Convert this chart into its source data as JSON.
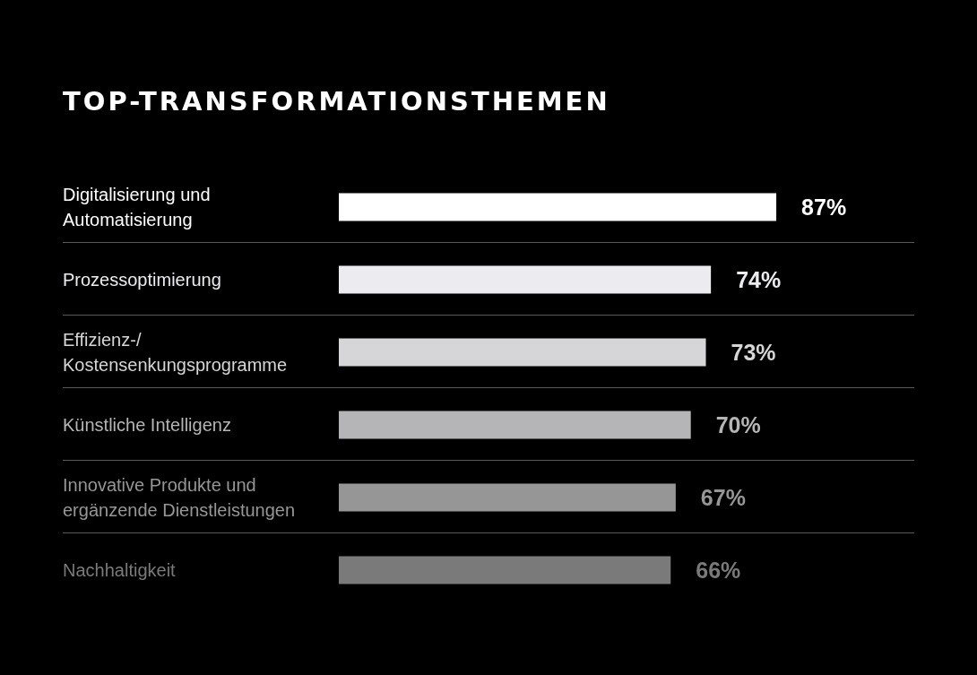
{
  "chart_data": {
    "type": "bar",
    "orientation": "horizontal",
    "title": "TOP-TRANSFORMATIONSTHEMEN",
    "categories": [
      "Digitalisierung und Automatisierung",
      "Prozessoptimierung",
      "Effizienz-/ Kostensenkungsprogramme",
      "Künstliche Intelligenz",
      "Innovative Produkte und ergänzende Dienstleistungen",
      "Nachhaltigkeit"
    ],
    "values": [
      87,
      74,
      73,
      70,
      67,
      66
    ],
    "value_labels": [
      "87%",
      "74%",
      "73%",
      "70%",
      "67%",
      "66%"
    ],
    "colors": [
      "#ffffff",
      "#ebebf0",
      "#d6d6d9",
      "#b5b5b7",
      "#969696",
      "#7a7a7a"
    ],
    "tick_labels": "y",
    "grid": false
  }
}
